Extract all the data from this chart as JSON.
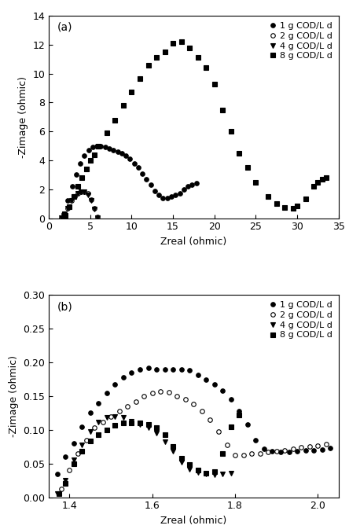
{
  "panel_a": {
    "title": "(a)",
    "xlabel": "Zreal (ohmic)",
    "ylabel": "-Zimage (ohmic)",
    "xlim": [
      0,
      35
    ],
    "ylim": [
      0,
      14
    ],
    "xticks": [
      0,
      5,
      10,
      15,
      20,
      25,
      30,
      35
    ],
    "yticks": [
      0,
      2,
      4,
      6,
      8,
      10,
      12,
      14
    ],
    "series": [
      {
        "label": "1 g COD/L d",
        "marker": "o",
        "filled": true,
        "color": "black",
        "markersize": 4,
        "x": [
          1.8,
          2.3,
          2.8,
          3.3,
          3.8,
          4.3,
          4.8,
          5.3,
          5.8,
          6.3,
          6.8,
          7.3,
          7.8,
          8.3,
          8.8,
          9.3,
          9.8,
          10.3,
          10.8,
          11.3,
          11.8,
          12.3,
          12.8,
          13.3,
          13.8,
          14.3,
          14.8,
          15.3,
          15.8,
          16.3,
          16.8,
          17.3,
          17.8
        ],
        "y": [
          0.3,
          1.2,
          2.2,
          3.0,
          3.8,
          4.3,
          4.7,
          4.9,
          5.0,
          5.0,
          4.9,
          4.8,
          4.7,
          4.6,
          4.5,
          4.3,
          4.1,
          3.8,
          3.5,
          3.1,
          2.7,
          2.3,
          1.9,
          1.6,
          1.4,
          1.4,
          1.5,
          1.6,
          1.7,
          2.0,
          2.2,
          2.3,
          2.4
        ]
      },
      {
        "label": "2 g COD/L d",
        "marker": "o",
        "filled": false,
        "color": "black",
        "markersize": 4,
        "x": [
          1.5,
          1.9,
          2.3,
          2.7,
          3.1,
          3.5,
          3.9,
          4.3,
          4.7,
          5.1,
          5.5,
          5.9
        ],
        "y": [
          0.05,
          0.3,
          0.7,
          1.2,
          1.5,
          1.7,
          1.8,
          1.8,
          1.7,
          1.3,
          0.7,
          0.1
        ]
      },
      {
        "label": "4 g COD/L d",
        "marker": "v",
        "filled": true,
        "color": "black",
        "markersize": 4,
        "x": [
          1.5,
          1.9,
          2.3,
          2.7,
          3.1,
          3.5,
          3.9,
          4.3,
          4.7,
          5.1,
          5.5,
          5.9
        ],
        "y": [
          0.05,
          0.3,
          0.7,
          1.2,
          1.5,
          1.7,
          1.8,
          1.8,
          1.6,
          1.2,
          0.6,
          0.05
        ]
      },
      {
        "label": "8 g COD/L d",
        "marker": "s",
        "filled": true,
        "color": "black",
        "markersize": 4,
        "x": [
          2.0,
          2.5,
          3.0,
          3.5,
          4.0,
          4.5,
          5.0,
          5.5,
          6.0,
          7.0,
          8.0,
          9.0,
          10.0,
          11.0,
          12.0,
          13.0,
          14.0,
          15.0,
          16.0,
          17.0,
          18.0,
          19.0,
          20.0,
          21.0,
          22.0,
          23.0,
          24.0,
          25.0,
          26.5,
          27.5,
          28.5,
          29.5,
          30.0,
          31.0,
          32.0,
          32.5,
          33.0,
          33.5
        ],
        "y": [
          0.2,
          0.8,
          1.5,
          2.2,
          2.8,
          3.4,
          4.0,
          4.4,
          5.0,
          5.9,
          6.8,
          7.8,
          8.75,
          9.65,
          10.6,
          11.1,
          11.5,
          12.1,
          12.2,
          11.8,
          11.1,
          10.4,
          9.3,
          7.5,
          6.0,
          4.5,
          3.5,
          2.5,
          1.5,
          1.0,
          0.75,
          0.7,
          0.85,
          1.35,
          2.2,
          2.5,
          2.7,
          2.8
        ]
      }
    ]
  },
  "panel_b": {
    "title": "(b)",
    "xlabel": "Zreal (ohmic)",
    "ylabel": "-Zimage (ohmic)",
    "xlim": [
      1.35,
      2.05
    ],
    "ylim": [
      0.0,
      0.3
    ],
    "xticks": [
      1.4,
      1.6,
      1.8,
      2.0
    ],
    "yticks": [
      0.0,
      0.05,
      0.1,
      0.15,
      0.2,
      0.25,
      0.3
    ],
    "series": [
      {
        "label": "1 g COD/L d",
        "marker": "o",
        "filled": true,
        "color": "black",
        "markersize": 4,
        "x": [
          1.37,
          1.39,
          1.41,
          1.43,
          1.45,
          1.47,
          1.49,
          1.51,
          1.53,
          1.55,
          1.57,
          1.59,
          1.61,
          1.63,
          1.65,
          1.67,
          1.69,
          1.71,
          1.73,
          1.75,
          1.77,
          1.79,
          1.81,
          1.83,
          1.85,
          1.87,
          1.89,
          1.91,
          1.93,
          1.95,
          1.97,
          1.99,
          2.01,
          2.03
        ],
        "y": [
          0.035,
          0.06,
          0.08,
          0.105,
          0.125,
          0.14,
          0.155,
          0.168,
          0.178,
          0.185,
          0.19,
          0.192,
          0.19,
          0.19,
          0.19,
          0.19,
          0.188,
          0.182,
          0.175,
          0.168,
          0.158,
          0.145,
          0.128,
          0.108,
          0.085,
          0.072,
          0.068,
          0.067,
          0.067,
          0.068,
          0.069,
          0.07,
          0.071,
          0.073
        ]
      },
      {
        "label": "2 g COD/L d",
        "marker": "o",
        "filled": false,
        "color": "black",
        "markersize": 4,
        "x": [
          1.38,
          1.4,
          1.42,
          1.44,
          1.46,
          1.48,
          1.5,
          1.52,
          1.54,
          1.56,
          1.58,
          1.6,
          1.62,
          1.64,
          1.66,
          1.68,
          1.7,
          1.72,
          1.74,
          1.76,
          1.78,
          1.8,
          1.82,
          1.84,
          1.86,
          1.88,
          1.9,
          1.92,
          1.94,
          1.96,
          1.98,
          2.0,
          2.02
        ],
        "y": [
          0.012,
          0.04,
          0.065,
          0.085,
          0.103,
          0.112,
          0.12,
          0.128,
          0.135,
          0.142,
          0.15,
          0.155,
          0.157,
          0.156,
          0.15,
          0.145,
          0.138,
          0.128,
          0.115,
          0.098,
          0.078,
          0.063,
          0.063,
          0.065,
          0.065,
          0.067,
          0.068,
          0.07,
          0.072,
          0.074,
          0.075,
          0.077,
          0.079
        ]
      },
      {
        "label": "4 g COD/L d",
        "marker": "v",
        "filled": true,
        "color": "black",
        "markersize": 4,
        "x": [
          1.37,
          1.39,
          1.41,
          1.43,
          1.45,
          1.47,
          1.49,
          1.51,
          1.53,
          1.55,
          1.57,
          1.59,
          1.61,
          1.63,
          1.65,
          1.67,
          1.69,
          1.71,
          1.73,
          1.75,
          1.77,
          1.79
        ],
        "y": [
          0.005,
          0.025,
          0.055,
          0.078,
          0.098,
          0.112,
          0.118,
          0.12,
          0.118,
          0.113,
          0.108,
          0.103,
          0.095,
          0.082,
          0.068,
          0.052,
          0.042,
          0.037,
          0.034,
          0.033,
          0.034,
          0.036
        ]
      },
      {
        "label": "8 g COD/L d",
        "marker": "s",
        "filled": true,
        "color": "black",
        "markersize": 4,
        "x": [
          1.375,
          1.39,
          1.41,
          1.43,
          1.45,
          1.47,
          1.49,
          1.51,
          1.53,
          1.55,
          1.57,
          1.59,
          1.61,
          1.63,
          1.65,
          1.67,
          1.69,
          1.71,
          1.73,
          1.75,
          1.77,
          1.79,
          1.81
        ],
        "y": [
          0.005,
          0.02,
          0.05,
          0.068,
          0.083,
          0.093,
          0.1,
          0.107,
          0.11,
          0.11,
          0.11,
          0.108,
          0.103,
          0.093,
          0.075,
          0.058,
          0.048,
          0.04,
          0.036,
          0.038,
          0.065,
          0.105,
          0.122
        ]
      }
    ]
  },
  "background_color": "#ffffff",
  "text_color": "#000000",
  "font_size": 9
}
